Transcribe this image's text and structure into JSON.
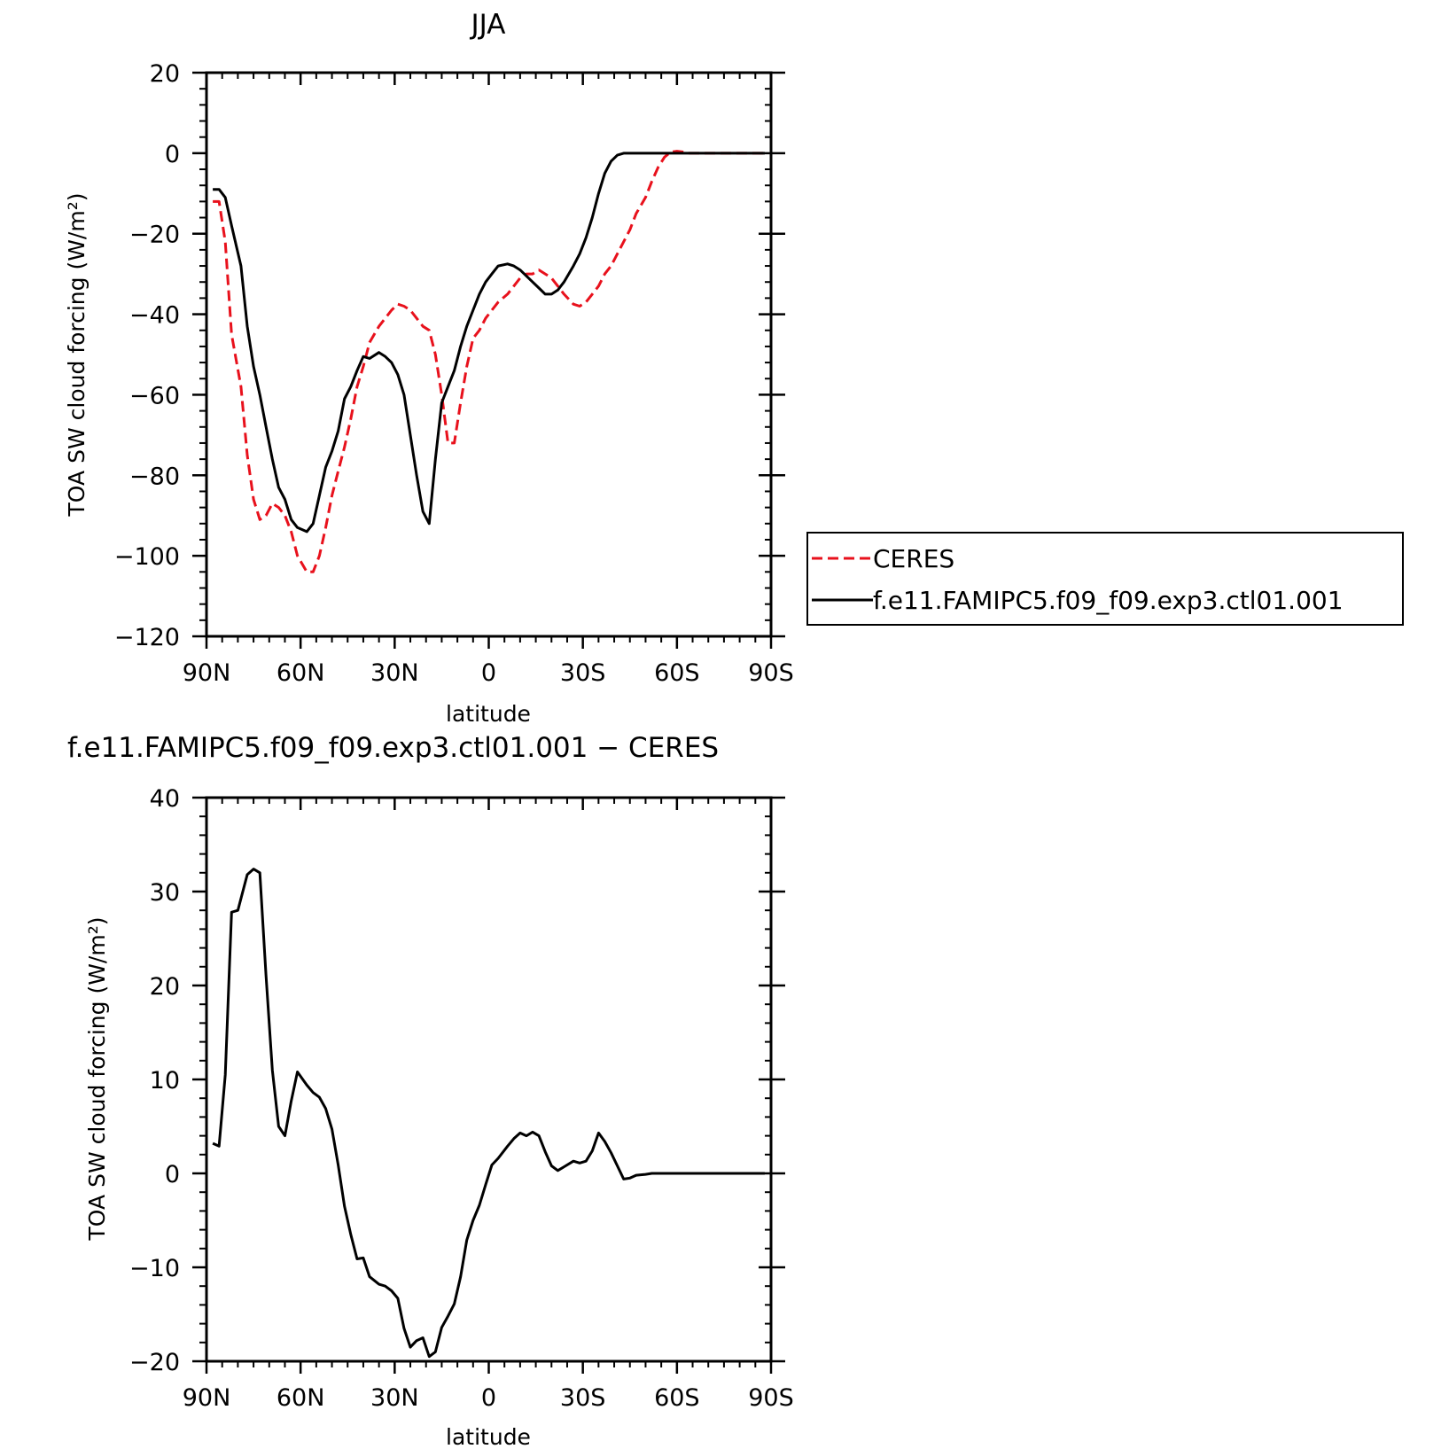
{
  "chart_data": [
    {
      "type": "line",
      "title": "JJA",
      "xlabel": "latitude",
      "ylabel": "TOA SW cloud forcing (W/m²)",
      "xlim": [
        -90,
        90
      ],
      "ylim": [
        -120,
        20
      ],
      "x_ticks": [
        {
          "value": -90,
          "label": "90N"
        },
        {
          "value": -60,
          "label": "60N"
        },
        {
          "value": -30,
          "label": "30N"
        },
        {
          "value": 0,
          "label": "0"
        },
        {
          "value": 30,
          "label": "30S"
        },
        {
          "value": 60,
          "label": "60S"
        },
        {
          "value": 90,
          "label": "90S"
        }
      ],
      "y_ticks": [
        20,
        0,
        -20,
        -40,
        -60,
        -80,
        -100,
        -120
      ],
      "legend": "right",
      "series": [
        {
          "name": "CERES",
          "color": "#e8111c",
          "dash": true,
          "x": [
            -88,
            -86,
            -84,
            -82,
            -79,
            -77,
            -75,
            -73,
            -71,
            -69,
            -67,
            -65,
            -63,
            -61,
            -58,
            -56,
            -54,
            -52,
            -50,
            -48,
            -46,
            -44,
            -42,
            -40,
            -38,
            -35,
            -33,
            -31,
            -29,
            -27,
            -25,
            -23,
            -21,
            -19,
            -17,
            -15,
            -13,
            -11,
            -9,
            -7,
            -5,
            -3,
            -1,
            1,
            3,
            6,
            8,
            10,
            12,
            14,
            16,
            18,
            20,
            22,
            24,
            27,
            29,
            31,
            33,
            35,
            37,
            39,
            41,
            43,
            45,
            47,
            50,
            52,
            54,
            56,
            58,
            60,
            62,
            64,
            66,
            68,
            70,
            72,
            74,
            76,
            78,
            80,
            82,
            84,
            86,
            88
          ],
          "y": [
            -12,
            -12,
            -22,
            -45,
            -58,
            -75,
            -86,
            -91,
            -90,
            -87,
            -88,
            -90,
            -94,
            -100,
            -104,
            -104,
            -100,
            -93,
            -85,
            -79,
            -73,
            -66,
            -58,
            -53,
            -47,
            -43,
            -41,
            -39,
            -37.5,
            -38,
            -39,
            -41,
            -43,
            -44,
            -50,
            -60,
            -72,
            -72,
            -62,
            -53,
            -46,
            -44,
            -41,
            -39,
            -37,
            -35,
            -33,
            -31,
            -30,
            -30,
            -29,
            -30,
            -31,
            -33,
            -35,
            -37.5,
            -38,
            -37,
            -35,
            -33,
            -30,
            -28,
            -25,
            -22,
            -19,
            -15,
            -11,
            -7,
            -3.5,
            -1,
            0.3,
            0.5,
            0.3,
            0,
            0,
            0,
            0,
            0,
            0,
            0,
            0,
            0,
            0,
            0,
            0,
            0
          ]
        },
        {
          "name": "f.e11.FAMIPC5.f09_f09.exp3.ctl01.001",
          "color": "#000000",
          "dash": false,
          "x": [
            -88,
            -86,
            -84,
            -82,
            -79,
            -77,
            -75,
            -73,
            -71,
            -69,
            -67,
            -65,
            -63,
            -61,
            -58,
            -56,
            -54,
            -52,
            -50,
            -48,
            -46,
            -44,
            -42,
            -40,
            -38,
            -35,
            -33,
            -31,
            -29,
            -27,
            -25,
            -23,
            -21,
            -19,
            -17,
            -15,
            -13,
            -11,
            -9,
            -7,
            -5,
            -3,
            -1,
            1,
            3,
            6,
            8,
            10,
            12,
            14,
            16,
            18,
            20,
            22,
            24,
            27,
            29,
            31,
            33,
            35,
            37,
            39,
            41,
            43,
            45,
            47,
            50,
            52,
            54,
            56,
            58,
            60,
            62,
            64,
            66,
            68,
            70,
            72,
            74,
            76,
            78,
            80,
            82,
            84,
            86,
            88
          ],
          "y": [
            -9,
            -9,
            -11,
            -18,
            -28,
            -43,
            -53,
            -60,
            -68,
            -76,
            -83,
            -86,
            -91,
            -93,
            -94,
            -92,
            -85,
            -78,
            -74,
            -69,
            -61,
            -58,
            -54,
            -50.5,
            -51,
            -49.5,
            -50.5,
            -52,
            -55,
            -60,
            -70,
            -80,
            -89,
            -92,
            -76,
            -62,
            -58,
            -54,
            -48,
            -43,
            -39,
            -35,
            -32,
            -30,
            -28,
            -27.5,
            -28,
            -29,
            -30.5,
            -32,
            -33.5,
            -35,
            -35,
            -34,
            -32,
            -28,
            -25,
            -21,
            -16,
            -10,
            -5,
            -2,
            -0.5,
            0,
            0,
            0,
            0,
            0,
            0,
            0,
            0,
            0,
            0,
            0,
            0,
            0,
            0,
            0,
            0,
            0,
            0,
            0,
            0,
            0,
            0,
            0
          ]
        }
      ]
    },
    {
      "type": "line",
      "title": "f.e11.FAMIPC5.f09_f09.exp3.ctl01.001 − CERES",
      "xlabel": "latitude",
      "ylabel": "TOA SW cloud forcing (W/m²)",
      "xlim": [
        -90,
        90
      ],
      "ylim": [
        -20,
        40
      ],
      "x_ticks": [
        {
          "value": -90,
          "label": "90N"
        },
        {
          "value": -60,
          "label": "60N"
        },
        {
          "value": -30,
          "label": "30N"
        },
        {
          "value": 0,
          "label": "0"
        },
        {
          "value": 30,
          "label": "30S"
        },
        {
          "value": 60,
          "label": "60S"
        },
        {
          "value": 90,
          "label": "90S"
        }
      ],
      "y_ticks": [
        40,
        30,
        20,
        10,
        0,
        -10,
        -20
      ],
      "series": [
        {
          "color": "#000000",
          "dash": false,
          "x": [
            -88,
            -86,
            -84,
            -82,
            -80,
            -77,
            -75,
            -73,
            -71,
            -69,
            -67,
            -65,
            -63,
            -61,
            -58,
            -56,
            -54,
            -52,
            -50,
            -48,
            -46,
            -44,
            -42,
            -40,
            -38,
            -35,
            -33,
            -31,
            -29,
            -27,
            -25,
            -23,
            -21,
            -19,
            -17,
            -15,
            -13,
            -11,
            -9,
            -7,
            -5,
            -3,
            -1,
            1,
            3,
            6,
            8,
            10,
            12,
            14,
            16,
            18,
            20,
            22,
            24,
            27,
            29,
            31,
            33,
            35,
            37,
            39,
            41,
            43,
            45,
            47,
            50,
            52,
            54,
            56,
            58,
            60,
            62,
            64,
            66,
            68,
            70,
            72,
            74,
            76,
            78,
            80,
            82,
            84,
            86,
            88
          ],
          "y": [
            3.2,
            2.9,
            10.5,
            27.8,
            28,
            31.8,
            32.4,
            32,
            21,
            11,
            5,
            4,
            7.7,
            10.8,
            9.4,
            8.6,
            8.1,
            6.9,
            4.7,
            0.9,
            -3.5,
            -6.5,
            -9.1,
            -9,
            -11,
            -11.8,
            -12,
            -12.5,
            -13.3,
            -16.5,
            -18.5,
            -17.8,
            -17.5,
            -19.5,
            -19,
            -16.4,
            -15.2,
            -13.9,
            -11,
            -7.1,
            -5,
            -3.4,
            -1.2,
            0.9,
            1.6,
            2.9,
            3.7,
            4.3,
            4,
            4.4,
            4,
            2.3,
            0.8,
            0.3,
            0.7,
            1.3,
            1.1,
            1.3,
            2.4,
            4.3,
            3.4,
            2.2,
            0.8,
            -0.6,
            -0.5,
            -0.2,
            -0.1,
            0,
            0,
            0,
            0,
            0,
            0,
            0,
            0,
            0,
            0,
            0,
            0,
            0,
            0,
            0,
            0,
            0,
            0,
            0
          ]
        }
      ]
    }
  ]
}
